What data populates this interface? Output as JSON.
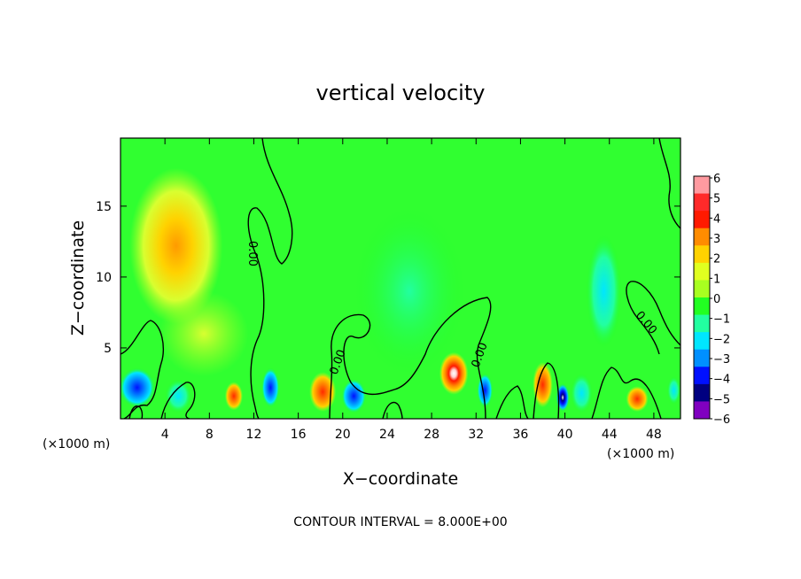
{
  "chart_data": {
    "type": "heatmap",
    "title": "vertical velocity",
    "xlabel": "X−coordinate",
    "ylabel": "Z−coordinate",
    "x_unit_left": "(×1000 m)",
    "x_unit_right": "(×1000 m)",
    "xlim": [
      0,
      50.4
    ],
    "ylim": [
      0,
      19.8
    ],
    "x_ticks": [
      4,
      8,
      12,
      16,
      20,
      24,
      28,
      32,
      36,
      40,
      44,
      48
    ],
    "y_ticks": [
      5,
      10,
      15
    ],
    "contour_label": "0.00",
    "contour_interval_text": "CONTOUR INTERVAL = 8.000E+00",
    "colorbar": {
      "labels": [
        "6",
        "5",
        "4",
        "3",
        "2",
        "1",
        "0",
        "−1",
        "−2",
        "−3",
        "−4",
        "−5",
        "−6"
      ],
      "colors": [
        "#ff9aa0",
        "#ff2a2a",
        "#ff1a00",
        "#ff8c00",
        "#ffd200",
        "#e0ff20",
        "#a8ff20",
        "#22ff22",
        "#22ffa0",
        "#00e6ff",
        "#0090ff",
        "#0010ff",
        "#000080",
        "#8000c0"
      ]
    },
    "features": [
      {
        "x": 5.0,
        "z": 12.2,
        "value": 1.6,
        "rx": 4.2,
        "rz": 5.5
      },
      {
        "x": 7.5,
        "z": 6.0,
        "value": 1.0,
        "rx": 4.0,
        "rz": 3.0
      },
      {
        "x": 1.5,
        "z": 2.2,
        "value": -2.8,
        "rx": 1.6,
        "rz": 1.4
      },
      {
        "x": 5.2,
        "z": 1.6,
        "value": -2.5,
        "rx": 1.2,
        "rz": 1.2
      },
      {
        "x": 10.2,
        "z": 1.6,
        "value": 3.0,
        "rx": 0.8,
        "rz": 1.0
      },
      {
        "x": 13.5,
        "z": 2.2,
        "value": -3.0,
        "rx": 0.8,
        "rz": 1.4
      },
      {
        "x": 18.2,
        "z": 1.9,
        "value": 3.2,
        "rx": 1.2,
        "rz": 1.4
      },
      {
        "x": 21.0,
        "z": 1.6,
        "value": -5.0,
        "rx": 1.1,
        "rz": 1.2
      },
      {
        "x": 30.0,
        "z": 3.2,
        "value": 5.8,
        "rx": 1.3,
        "rz": 1.5
      },
      {
        "x": 32.8,
        "z": 2.0,
        "value": -3.0,
        "rx": 0.7,
        "rz": 1.2
      },
      {
        "x": 38.0,
        "z": 2.4,
        "value": 4.2,
        "rx": 0.9,
        "rz": 1.6
      },
      {
        "x": 39.8,
        "z": 1.5,
        "value": -6.0,
        "rx": 0.6,
        "rz": 1.0
      },
      {
        "x": 46.5,
        "z": 1.4,
        "value": 4.0,
        "rx": 1.0,
        "rz": 0.9
      },
      {
        "x": 41.5,
        "z": 1.8,
        "value": -1.8,
        "rx": 1.0,
        "rz": 1.4
      },
      {
        "x": 43.5,
        "z": 9.0,
        "value": -2.0,
        "rx": 1.6,
        "rz": 4.0
      },
      {
        "x": 26.0,
        "z": 9.0,
        "value": -1.0,
        "rx": 5.0,
        "rz": 6.0
      },
      {
        "x": 49.8,
        "z": 2.0,
        "value": -2.0,
        "rx": 0.6,
        "rz": 1.0
      }
    ]
  }
}
